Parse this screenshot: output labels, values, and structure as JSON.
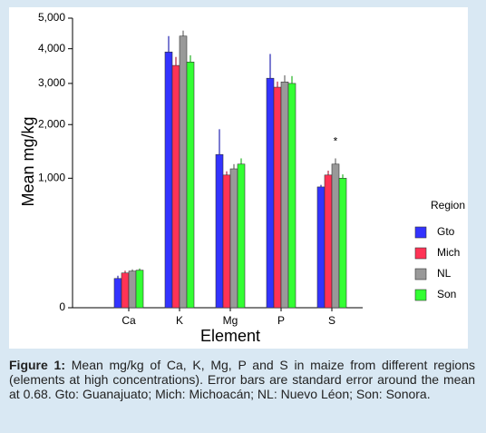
{
  "chart_data": {
    "type": "bar",
    "yscale": "sqrt",
    "x_label": "Element",
    "y_label": "Mean mg/kg",
    "categories": [
      "Ca",
      "K",
      "Mg",
      "P",
      "S"
    ],
    "series": [
      {
        "name": "Gto",
        "color": "#3333ff",
        "values": [
          51,
          3900,
          1400,
          3140,
          870
        ],
        "errors": [
          10,
          500,
          500,
          700,
          30
        ]
      },
      {
        "name": "Mich",
        "color": "#ff3355",
        "values": [
          72,
          3500,
          1050,
          2900,
          1050
        ],
        "errors": [
          10,
          250,
          60,
          150,
          70
        ]
      },
      {
        "name": "NL",
        "color": "#999999",
        "values": [
          80,
          4400,
          1150,
          3040,
          1230
        ],
        "errors": [
          8,
          180,
          80,
          180,
          100
        ]
      },
      {
        "name": "Son",
        "color": "#33ff33",
        "values": [
          84,
          3600,
          1230,
          3000,
          1000
        ],
        "errors": [
          8,
          200,
          100,
          200,
          60
        ]
      }
    ],
    "ylim": [
      0,
      5000
    ],
    "yticks": [
      0,
      {
        "value": 1000,
        "label": "1,000"
      },
      {
        "value": 2000,
        "label": "2,000"
      },
      {
        "value": 3000,
        "label": "3,000"
      },
      {
        "value": 4000,
        "label": "4,000"
      },
      {
        "value": 5000,
        "label": "5,000"
      }
    ],
    "legend_title": "Region",
    "legend_position": "right",
    "annotation": "*"
  },
  "caption": {
    "label": "Figure 1:",
    "text": "Mean mg/kg of Ca, K, Mg, P and S in maize from different regions (elements at high concentrations). Error bars are standard error around the mean at 0.68. Gto: Guanajuato; Mich: Michoacán; NL: Nuevo Léon; Son: Sonora."
  }
}
